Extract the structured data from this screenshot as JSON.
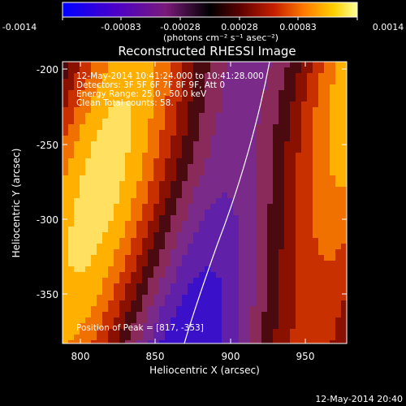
{
  "colorbar": {
    "ticks": [
      "-0.0014",
      "-0.00083",
      "-0.00028",
      "0.00028",
      "0.00083",
      "0.0014"
    ],
    "units": "(photons cm⁻² s⁻¹ asec⁻²)",
    "colors": [
      "#0000ff",
      "#4b00c8",
      "#7a1a7a",
      "#000000",
      "#5a0000",
      "#c82000",
      "#ff7a00",
      "#ffd000",
      "#ffff9a"
    ]
  },
  "title": "Reconstructed RHESSI Image",
  "annotation": {
    "line1": "12-May-2014 10:41:24.000 to 10:41:28.000",
    "line2": "Detectors: 3F 5F 6F 7F 8F 9F, Att 0",
    "line3": "Energy Range: 25.0 - 50.0 keV",
    "line4": "Clean     Total counts: 58.",
    "peak": "Position of Peak = [817, -353]"
  },
  "x_axis": {
    "label": "Heliocentric X (arcsec)",
    "ticks": [
      "800",
      "850",
      "900",
      "950"
    ]
  },
  "y_axis": {
    "label": "Heliocentric Y (arcsec)",
    "ticks": [
      "-200",
      "-250",
      "-300",
      "-350"
    ]
  },
  "footer_timestamp": "12-May-2014 20:40"
}
